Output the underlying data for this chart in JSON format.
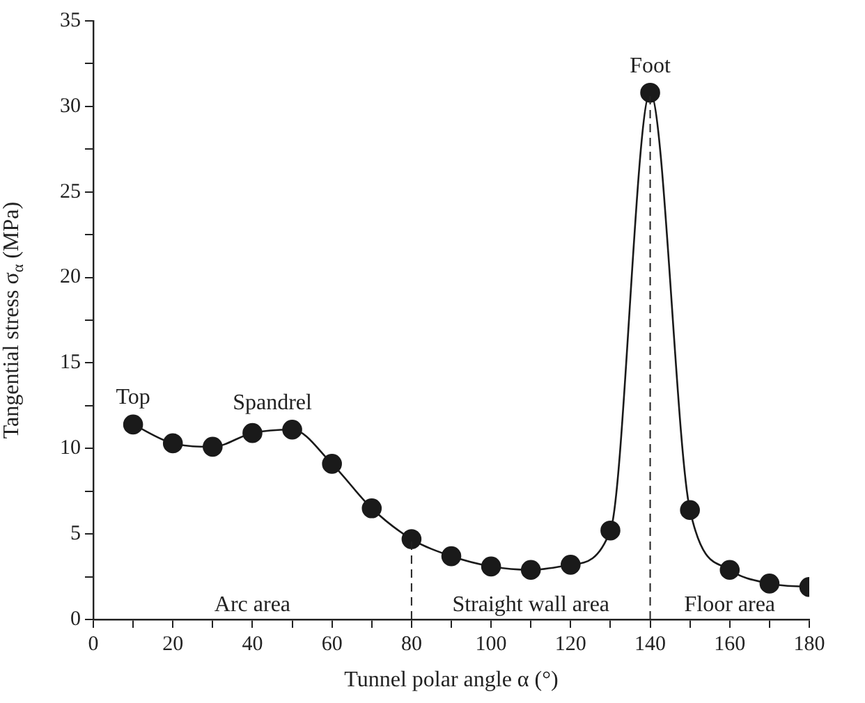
{
  "chart_data": {
    "type": "line",
    "xlabel": "Tunnel polar angle α (°)",
    "ylabel": "Tangential stress σ$_{α}$ (MPa)",
    "x": [
      10,
      20,
      30,
      40,
      50,
      60,
      70,
      80,
      90,
      100,
      110,
      120,
      130,
      140,
      150,
      160,
      170,
      180
    ],
    "series": [
      {
        "color": "#1a1a1a",
        "values": [
          11.4,
          10.3,
          10.1,
          10.9,
          11.1,
          9.1,
          6.5,
          4.7,
          3.7,
          3.1,
          2.9,
          3.2,
          5.2,
          30.8,
          6.4,
          2.9,
          2.1,
          1.9
        ]
      }
    ],
    "xlim": [
      0,
      180
    ],
    "xticks": [
      0,
      {
        "value": 10,
        "label": null
      },
      20,
      {
        "value": 30,
        "label": null
      },
      40,
      {
        "value": 50,
        "label": null
      },
      60,
      {
        "value": 70,
        "label": null
      },
      80,
      {
        "value": 90,
        "label": null
      },
      100,
      {
        "value": 110,
        "label": null
      },
      120,
      {
        "value": 130,
        "label": null
      },
      140,
      {
        "value": 150,
        "label": null
      },
      160,
      {
        "value": 170,
        "label": null
      },
      180
    ],
    "ylim": [
      0,
      35
    ],
    "yticks": [
      0,
      {
        "value": 2.5,
        "label": null
      },
      5,
      {
        "value": 7.5,
        "label": null
      },
      10,
      {
        "value": 12.5,
        "label": null
      },
      15,
      {
        "value": 17.5,
        "label": null
      },
      20,
      {
        "value": 22.5,
        "label": null
      },
      25,
      {
        "value": 27.5,
        "label": null
      },
      30,
      {
        "value": 32.5,
        "label": null
      },
      35
    ],
    "grid": false,
    "legend": false,
    "marker": "circle",
    "line_style": "solid",
    "ref_lines": [
      {
        "axis": "x",
        "value": 80,
        "line_style": "dashed"
      },
      {
        "axis": "x",
        "value": 140,
        "line_style": "dashed"
      }
    ],
    "annotations": [
      {
        "text": "Top",
        "x": 10,
        "y": 11.4
      },
      {
        "text": "Spandrel",
        "x": 45,
        "y": 11.1
      },
      {
        "text": "Foot",
        "x": 140,
        "y": 30.8
      },
      "Arc area",
      "Straight wall area",
      "Floor area"
    ]
  }
}
